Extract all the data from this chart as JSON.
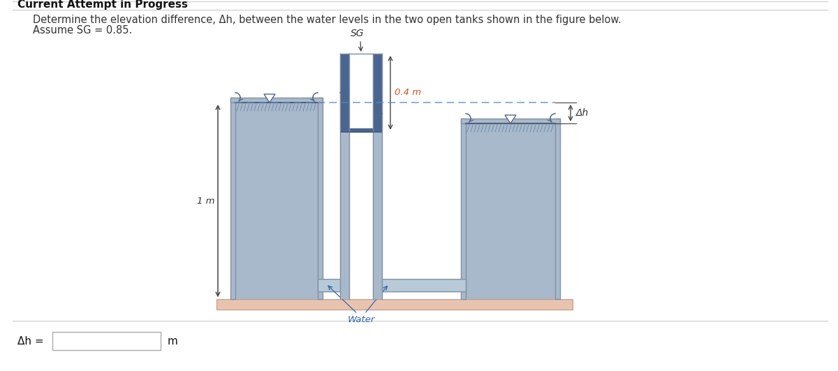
{
  "title_text": "Current Attempt in Progress",
  "problem_line1": "Determine the elevation difference, Δh, between the water levels in the two open tanks shown in the figure below.",
  "problem_line2": "Assume SG = 0.85.",
  "answer_label": "Δh =",
  "answer_unit": "m",
  "bg_color": "#ffffff",
  "tank_color": "#a8b9cb",
  "wall_color": "#8090a2",
  "sg_dark_color": "#4a6590",
  "sg_medium_color": "#6688aa",
  "ground_color": "#e8c4b0",
  "ground_border": "#c09888",
  "dashed_color": "#5588bb",
  "water_label_color": "#3366aa",
  "dim_color": "#cc5522",
  "text_color": "#333333",
  "arrow_color": "#444444",
  "sg_label": "SG",
  "water_label": "Water",
  "dim_04_label": "0.4 m",
  "dim_1m_label": "1 m",
  "delta_h_label": "Δh",
  "title_fontsize": 11,
  "body_fontsize": 10.5,
  "diagram_fontsize": 9.5
}
